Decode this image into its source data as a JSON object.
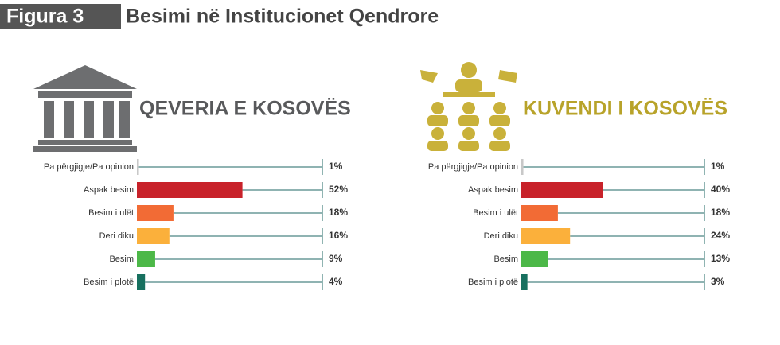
{
  "figure_label": "Figura 3",
  "title": "Besimi në Institucionet Qendrore",
  "chart_data": [
    {
      "type": "bar",
      "title": "QEVERIA E KOSOVËS",
      "categories": [
        "Pa përgjigje/Pa opinion",
        "Aspak besim",
        "Besim i ulët",
        "Deri diku",
        "Besim",
        "Besim i plotë"
      ],
      "values": [
        1,
        52,
        18,
        16,
        9,
        4
      ],
      "value_labels": [
        "1%",
        "52%",
        "18%",
        "16%",
        "9%",
        "4%"
      ],
      "colors": [
        "#c8c8c8",
        "#c8222a",
        "#f26b35",
        "#fbb03b",
        "#4cb848",
        "#17705f"
      ]
    },
    {
      "type": "bar",
      "title": "KUVENDI I KOSOVËS",
      "categories": [
        "Pa përgjigje/Pa opinion",
        "Aspak besim",
        "Besim i ulët",
        "Deri diku",
        "Besim",
        "Besim i plotë"
      ],
      "values": [
        1,
        40,
        18,
        24,
        13,
        3
      ],
      "value_labels": [
        "1%",
        "40%",
        "18%",
        "24%",
        "13%",
        "3%"
      ],
      "colors": [
        "#c8c8c8",
        "#c8222a",
        "#f26b35",
        "#fbb03b",
        "#4cb848",
        "#17705f"
      ]
    }
  ]
}
